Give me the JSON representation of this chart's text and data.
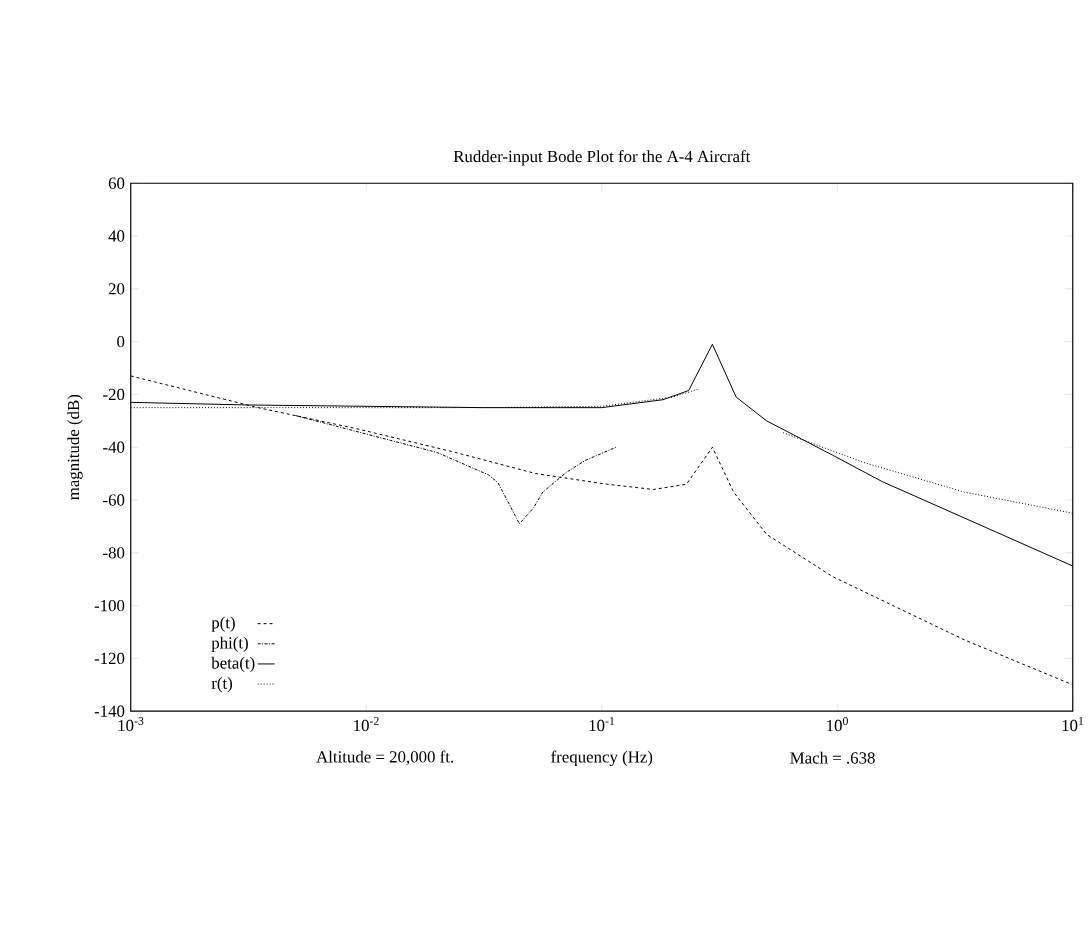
{
  "chart_data": {
    "type": "line",
    "title": "Rudder-input Bode Plot for the A-4 Aircraft",
    "xlabel": "frequency (Hz)",
    "ylabel": "magnitude (dB)",
    "annotations": [
      "Altitude = 20,000 ft.",
      "Mach = .638"
    ],
    "log": "x",
    "legend": "bottom left",
    "xlim": [
      0.001,
      10
    ],
    "ylim": [
      -140,
      60
    ],
    "xticks": [
      {
        "value": 0.001,
        "label": "10$^{-3}$"
      },
      {
        "value": 0.01,
        "label": "10$^{-2}$"
      },
      {
        "value": 0.1,
        "label": "10$^{-1}$"
      },
      {
        "value": 1,
        "label": "10$^{0}$"
      },
      {
        "value": 10,
        "label": "10$^{1}$"
      }
    ],
    "yticks": [
      -140,
      -120,
      -100,
      -80,
      -60,
      -40,
      -20,
      0,
      20,
      40,
      60
    ],
    "series": [
      {
        "name": "p(t)",
        "color": "#000000",
        "line_style": "dashed",
        "x": [
          0.001,
          0.00347,
          0.00912,
          0.024,
          0.0525,
          0.105,
          0.166,
          0.229,
          0.295,
          0.363,
          0.501,
          0.955,
          3.47,
          10
        ],
        "values": [
          -13,
          -25,
          -33,
          -42,
          -50,
          -54,
          -56,
          -54,
          -40,
          -57,
          -73,
          -89,
          -113,
          -130
        ]
      },
      {
        "name": "phi(t)",
        "color": "#000000",
        "line_style": "dashdot",
        "x": [
          0.00501,
          0.02,
          0.0331,
          0.0363,
          0.0447,
          0.0513,
          0.0562,
          0.0708,
          0.0851,
          0.115
        ],
        "values": [
          -28,
          -42,
          -50.5,
          -53.5,
          -69,
          -63,
          -57,
          -49.5,
          -45,
          -40
        ]
      },
      {
        "name": "beta(t)",
        "color": "#000000",
        "line_style": "solid",
        "x": [
          0.001,
          0.00316,
          0.0316,
          0.1,
          0.182,
          0.234,
          0.295,
          0.372,
          0.501,
          0.955,
          1.55,
          10
        ],
        "values": [
          -23,
          -24,
          -25,
          -25,
          -22,
          -18.5,
          -1,
          -21,
          -30,
          -43,
          -53,
          -85
        ]
      },
      {
        "name": "r(t)",
        "color": "#000000",
        "line_style": "dotted",
        "x": [
          0.001,
          0.00316,
          0.0316,
          0.1,
          0.2,
          0.257,
          0.4,
          0.589,
          1.32,
          3.47,
          10
        ],
        "values": [
          -25,
          -25,
          -25,
          -24.5,
          -21,
          -18,
          null,
          -34.5,
          -46,
          -57,
          -65
        ]
      }
    ]
  }
}
